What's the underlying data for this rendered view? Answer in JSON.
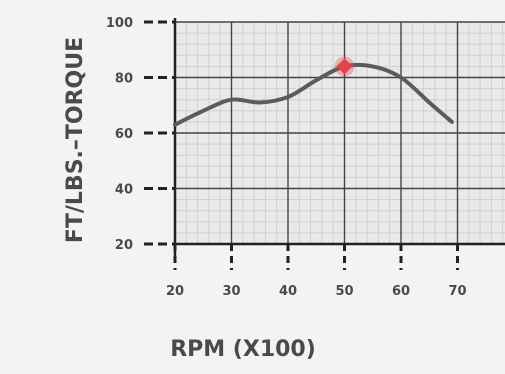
{
  "chart_data": {
    "type": "line",
    "xlabel": "RPM (X100)",
    "ylabel": "FT/LBS.–TORQUE",
    "x_ticks": [
      "20",
      "30",
      "40",
      "50",
      "60",
      "70"
    ],
    "y_ticks": [
      "20",
      "40",
      "60",
      "80",
      "100"
    ],
    "xlim": [
      20,
      80
    ],
    "ylim": [
      20,
      100
    ],
    "grid": true,
    "series": [
      {
        "x": [
          20,
          25,
          30,
          35,
          40,
          45,
          50,
          55,
          60,
          65,
          69
        ],
        "y": [
          63,
          68,
          72,
          71,
          73,
          79,
          84,
          84,
          80,
          71,
          64
        ],
        "color": "#5b5b5b"
      }
    ],
    "highlight": {
      "x": 50,
      "y": 84,
      "color": "#e0454f"
    }
  }
}
